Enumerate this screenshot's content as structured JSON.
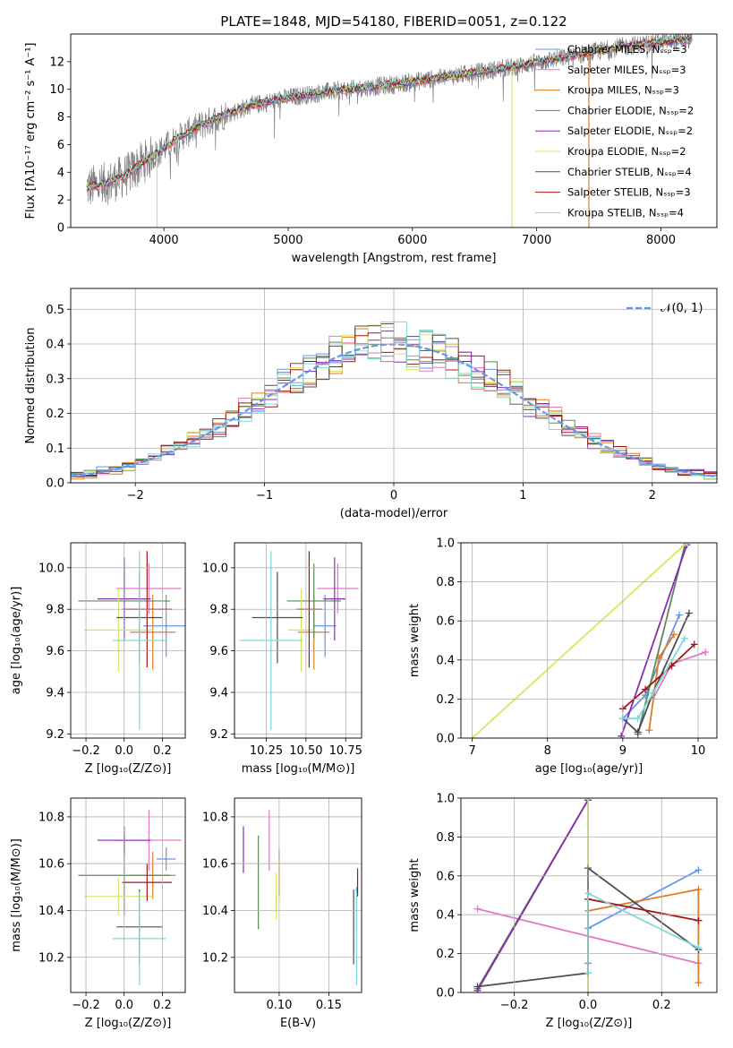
{
  "figure_title": "PLATE=1848, MJD=54180, FIBERID=0051, z=0.122",
  "model_colors": {
    "Chabrier MILES": "#6495ed",
    "Salpeter MILES": "#e377c2",
    "Kroupa MILES": "#e07b22",
    "Chabrier ELODIE": "#5a8a5a",
    "Salpeter ELODIE": "#8a2ab0",
    "Kroupa ELODIE": "#d4e95a",
    "Chabrier STELIB": "#4d4d4d",
    "Salpeter STELIB": "#a51414",
    "Kroupa STELIB": "#7ddada"
  },
  "chart_data": [
    {
      "id": "spectrum",
      "type": "line",
      "title": "PLATE=1848, MJD=54180, FIBERID=0051, z=0.122",
      "xlabel": "wavelength [Angstrom, rest frame]",
      "ylabel": "Flux [fλ10⁻¹⁷ erg cm⁻² s⁻¹ A⁻¹]",
      "xlim": [
        3250,
        8450
      ],
      "ylim": [
        0,
        14
      ],
      "xticks": [
        "4000",
        "5000",
        "6000",
        "7000",
        "8000"
      ],
      "yticks": [
        "0",
        "2",
        "4",
        "6",
        "8",
        "10",
        "12"
      ],
      "legend_position": "top-right",
      "data_color": "#808080",
      "continuum": [
        [
          3380,
          2.9
        ],
        [
          3550,
          3.2
        ],
        [
          3700,
          3.8
        ],
        [
          3800,
          4.5
        ],
        [
          3950,
          5.4
        ],
        [
          4100,
          6.4
        ],
        [
          4300,
          7.4
        ],
        [
          4500,
          8.2
        ],
        [
          4700,
          8.8
        ],
        [
          5000,
          9.4
        ],
        [
          5300,
          9.8
        ],
        [
          5600,
          10.1
        ],
        [
          5900,
          10.4
        ],
        [
          6200,
          10.8
        ],
        [
          6500,
          11.2
        ],
        [
          6800,
          11.6
        ],
        [
          7100,
          12.1
        ],
        [
          7400,
          12.6
        ],
        [
          7700,
          13.1
        ],
        [
          8000,
          13.4
        ],
        [
          8200,
          13.6
        ]
      ],
      "series": [
        {
          "name": "Chabrier MILES, Nₛₛₚ=3",
          "color": "#6495ed"
        },
        {
          "name": "Salpeter MILES, Nₛₛₚ=3",
          "color": "#e377c2"
        },
        {
          "name": "Kroupa MILES, Nₛₛₚ=3",
          "color": "#e07b22"
        },
        {
          "name": "Chabrier ELODIE, Nₛₛₚ=2",
          "color": "#5a8a5a"
        },
        {
          "name": "Salpeter ELODIE, Nₛₛₚ=2",
          "color": "#8a2ab0"
        },
        {
          "name": "Kroupa ELODIE, Nₛₛₚ=2",
          "color": "#d4e95a"
        },
        {
          "name": "Chabrier STELIB, Nₛₛₚ=4",
          "color": "#4d4d4d"
        },
        {
          "name": "Salpeter STELIB, Nₛₛₚ=3",
          "color": "#a51414"
        },
        {
          "name": "Kroupa STELIB, Nₛₛₚ=4",
          "color": "#7ddada"
        }
      ],
      "spikes": [
        {
          "x": 3945,
          "y": 0,
          "color": "#d4e95a"
        },
        {
          "x": 6800,
          "y": 0,
          "color": "#d4e95a"
        },
        {
          "x": 7420,
          "y": 0,
          "color": "#e07b22"
        }
      ]
    },
    {
      "id": "residuals",
      "type": "histogram",
      "xlabel": "(data-model)/error",
      "ylabel": "Normed distribution",
      "xlim": [
        -2.5,
        2.5
      ],
      "ylim": [
        0,
        0.56
      ],
      "xticks": [
        "−2",
        "−1",
        "0",
        "1",
        "2"
      ],
      "yticks": [
        "0.0",
        "0.1",
        "0.2",
        "0.3",
        "0.4",
        "0.5"
      ],
      "legend": "𝒩(0, 1)",
      "legend_position": "top-right",
      "gaussian_color": "#6495ed",
      "bin_width": 0.1
    },
    {
      "id": "age-vs-Z",
      "type": "errorbar",
      "xlabel": "Z [log₁₀(Z/Z⊙)]",
      "ylabel": "age  [log₁₀(age/yr)]",
      "xlim": [
        -0.28,
        0.32
      ],
      "ylim": [
        9.18,
        10.12
      ],
      "xticks": [
        "−0.2",
        "0.0",
        "0.2"
      ],
      "yticks": [
        "9.2",
        "9.4",
        "9.6",
        "9.8",
        "10.0"
      ],
      "points": [
        {
          "model": "Chabrier MILES",
          "x": 0.22,
          "xerr": 0.12,
          "y": 9.72,
          "yerr": 0.15
        },
        {
          "model": "Salpeter MILES",
          "x": 0.13,
          "xerr": 0.17,
          "y": 9.9,
          "yerr": 0.12
        },
        {
          "model": "Kroupa MILES",
          "x": 0.15,
          "xerr": 0.12,
          "y": 9.69,
          "yerr": 0.18
        },
        {
          "model": "Chabrier ELODIE",
          "x": 0.0,
          "xerr": 0.24,
          "y": 9.84,
          "yerr": 0.18
        },
        {
          "model": "Salpeter ELODIE",
          "x": 0.0,
          "xerr": 0.14,
          "y": 9.85,
          "yerr": 0.2
        },
        {
          "model": "Kroupa ELODIE",
          "x": -0.03,
          "xerr": 0.18,
          "y": 9.7,
          "yerr": 0.2
        },
        {
          "model": "Chabrier STELIB",
          "x": 0.08,
          "xerr": 0.12,
          "y": 9.76,
          "yerr": 0.22
        },
        {
          "model": "Salpeter STELIB",
          "x": 0.12,
          "xerr": 0.13,
          "y": 9.8,
          "yerr": 0.28
        },
        {
          "model": "Kroupa STELIB",
          "x": 0.08,
          "xerr": 0.14,
          "y": 9.65,
          "yerr": 0.43
        }
      ]
    },
    {
      "id": "age-vs-mass",
      "type": "errorbar",
      "xlabel": "mass [log₁₀(M/M⊙)]",
      "xlim": [
        10.05,
        10.85
      ],
      "ylim": [
        9.18,
        10.12
      ],
      "xticks": [
        "10.25",
        "10.50",
        "10.75"
      ],
      "yticks": [
        "9.2",
        "9.4",
        "9.6",
        "9.8",
        "10.0"
      ],
      "points": [
        {
          "model": "Chabrier MILES",
          "x": 10.62,
          "xerr": 0.07,
          "y": 9.72,
          "yerr": 0.15
        },
        {
          "model": "Salpeter MILES",
          "x": 10.7,
          "xerr": 0.13,
          "y": 9.9,
          "yerr": 0.12
        },
        {
          "model": "Kroupa MILES",
          "x": 10.55,
          "xerr": 0.1,
          "y": 9.69,
          "yerr": 0.18
        },
        {
          "model": "Chabrier ELODIE",
          "x": 10.55,
          "xerr": 0.17,
          "y": 9.84,
          "yerr": 0.18
        },
        {
          "model": "Salpeter ELODIE",
          "x": 10.68,
          "xerr": 0.07,
          "y": 9.85,
          "yerr": 0.2
        },
        {
          "model": "Kroupa ELODIE",
          "x": 10.47,
          "xerr": 0.08,
          "y": 9.7,
          "yerr": 0.2
        },
        {
          "model": "Chabrier STELIB",
          "x": 10.32,
          "xerr": 0.16,
          "y": 9.76,
          "yerr": 0.22
        },
        {
          "model": "Salpeter STELIB",
          "x": 10.52,
          "xerr": 0.08,
          "y": 9.8,
          "yerr": 0.28
        },
        {
          "model": "Kroupa STELIB",
          "x": 10.28,
          "xerr": 0.2,
          "y": 9.65,
          "yerr": 0.43
        }
      ]
    },
    {
      "id": "massweight-vs-age",
      "type": "line",
      "xlabel": "age  [log₁₀(age/yr)]",
      "ylabel": "mass weight",
      "xlim": [
        6.85,
        10.25
      ],
      "ylim": [
        0,
        1
      ],
      "xticks": [
        "7",
        "8",
        "9",
        "10"
      ],
      "yticks": [
        "0.0",
        "0.2",
        "0.4",
        "0.6",
        "0.8",
        "1.0"
      ],
      "series": [
        {
          "model": "Chabrier MILES",
          "points": [
            [
              9.0,
              0.1
            ],
            [
              9.3,
              0.22
            ],
            [
              9.75,
              0.63
            ]
          ]
        },
        {
          "model": "Salpeter MILES",
          "points": [
            [
              9.4,
              0.2
            ],
            [
              9.65,
              0.38
            ],
            [
              10.1,
              0.44
            ]
          ]
        },
        {
          "model": "Kroupa MILES",
          "points": [
            [
              9.35,
              0.04
            ],
            [
              9.48,
              0.41
            ],
            [
              9.68,
              0.53
            ]
          ]
        },
        {
          "model": "Chabrier ELODIE",
          "points": [
            [
              9.2,
              0.02
            ],
            [
              9.82,
              0.98
            ]
          ]
        },
        {
          "model": "Salpeter ELODIE",
          "points": [
            [
              8.98,
              0.01
            ],
            [
              9.85,
              0.99
            ]
          ]
        },
        {
          "model": "Kroupa ELODIE",
          "points": [
            [
              7.0,
              0.0
            ],
            [
              9.85,
              1.0
            ]
          ]
        },
        {
          "model": "Chabrier STELIB",
          "points": [
            [
              9.0,
              0.1
            ],
            [
              9.2,
              0.03
            ],
            [
              9.4,
              0.23
            ],
            [
              9.88,
              0.64
            ]
          ]
        },
        {
          "model": "Salpeter STELIB",
          "points": [
            [
              9.0,
              0.15
            ],
            [
              9.3,
              0.25
            ],
            [
              9.65,
              0.37
            ],
            [
              9.95,
              0.48
            ]
          ]
        },
        {
          "model": "Kroupa STELIB",
          "points": [
            [
              9.0,
              0.1
            ],
            [
              9.2,
              0.1
            ],
            [
              9.4,
              0.23
            ],
            [
              9.82,
              0.51
            ]
          ]
        }
      ]
    },
    {
      "id": "mass-vs-Z",
      "type": "errorbar",
      "xlabel": "Z [log₁₀(Z/Z⊙)]",
      "ylabel": "mass [log₁₀(M/M⊙)]",
      "xlim": [
        -0.28,
        0.32
      ],
      "ylim": [
        10.05,
        10.88
      ],
      "xticks": [
        "−0.2",
        "0.0",
        "0.2"
      ],
      "yticks": [
        "10.2",
        "10.4",
        "10.6",
        "10.8"
      ],
      "points": [
        {
          "model": "Chabrier MILES",
          "x": 0.22,
          "xerr": 0.05,
          "y": 10.62,
          "yerr": 0.05
        },
        {
          "model": "Salpeter MILES",
          "x": 0.13,
          "xerr": 0.17,
          "y": 10.7,
          "yerr": 0.13
        },
        {
          "model": "Kroupa MILES",
          "x": 0.15,
          "xerr": 0.12,
          "y": 10.55,
          "yerr": 0.1
        },
        {
          "model": "Chabrier ELODIE",
          "x": 0.0,
          "xerr": 0.24,
          "y": 10.55,
          "yerr": 0.17
        },
        {
          "model": "Salpeter ELODIE",
          "x": 0.0,
          "xerr": 0.14,
          "y": 10.7,
          "yerr": 0.06
        },
        {
          "model": "Kroupa ELODIE",
          "x": -0.03,
          "xerr": 0.18,
          "y": 10.46,
          "yerr": 0.08
        },
        {
          "model": "Chabrier STELIB",
          "x": 0.08,
          "xerr": 0.12,
          "y": 10.33,
          "yerr": 0.16
        },
        {
          "model": "Salpeter STELIB",
          "x": 0.12,
          "xerr": 0.13,
          "y": 10.52,
          "yerr": 0.08
        },
        {
          "model": "Kroupa STELIB",
          "x": 0.08,
          "xerr": 0.14,
          "y": 10.28,
          "yerr": 0.2
        }
      ]
    },
    {
      "id": "mass-vs-ebv",
      "type": "errorbar",
      "xlabel": "E(B-V)",
      "xlim": [
        0.055,
        0.183
      ],
      "ylim": [
        10.05,
        10.88
      ],
      "xticks": [
        "0.10",
        "0.15"
      ],
      "yticks": [
        "10.2",
        "10.4",
        "10.6",
        "10.8"
      ],
      "points": [
        {
          "model": "Chabrier MILES",
          "x": 0.178,
          "xerr": 0,
          "y": 10.4,
          "yerr": 0.1
        },
        {
          "model": "Salpeter MILES",
          "x": 0.09,
          "xerr": 0,
          "y": 10.7,
          "yerr": 0.13
        },
        {
          "model": "Kroupa MILES",
          "x": 0.1,
          "xerr": 0,
          "y": 10.56,
          "yerr": 0.1
        },
        {
          "model": "Chabrier ELODIE",
          "x": 0.079,
          "xerr": 0,
          "y": 10.52,
          "yerr": 0.2
        },
        {
          "model": "Salpeter ELODIE",
          "x": 0.064,
          "xerr": 0,
          "y": 10.66,
          "yerr": 0.1
        },
        {
          "model": "Kroupa ELODIE",
          "x": 0.097,
          "xerr": 0,
          "y": 10.46,
          "yerr": 0.1
        },
        {
          "model": "Chabrier STELIB",
          "x": 0.175,
          "xerr": 0,
          "y": 10.33,
          "yerr": 0.16
        },
        {
          "model": "Salpeter STELIB",
          "x": 0.179,
          "xerr": 0,
          "y": 10.52,
          "yerr": 0.06
        },
        {
          "model": "Kroupa STELIB",
          "x": 0.178,
          "xerr": 0,
          "y": 10.28,
          "yerr": 0.2
        }
      ]
    },
    {
      "id": "massweight-vs-Z",
      "type": "line",
      "xlabel": "Z [log₁₀(Z/Z⊙)]",
      "ylabel": "mass weight",
      "xlim": [
        -0.345,
        0.35
      ],
      "ylim": [
        0,
        1
      ],
      "xticks": [
        "−0.2",
        "0.0",
        "0.2"
      ],
      "yticks": [
        "0.0",
        "0.2",
        "0.4",
        "0.6",
        "0.8",
        "1.0"
      ],
      "series": [
        {
          "model": "Chabrier MILES",
          "points": [
            [
              0.0,
              0.15
            ],
            [
              0.0,
              0.33
            ],
            [
              0.3,
              0.63
            ]
          ]
        },
        {
          "model": "Salpeter MILES",
          "points": [
            [
              -0.3,
              0.43
            ],
            [
              0.3,
              0.15
            ]
          ]
        },
        {
          "model": "Kroupa MILES",
          "points": [
            [
              0.0,
              0.42
            ],
            [
              0.3,
              0.53
            ],
            [
              0.3,
              0.05
            ]
          ]
        },
        {
          "model": "Chabrier ELODIE",
          "points": [
            [
              -0.3,
              0.02
            ],
            [
              0.0,
              0.99
            ]
          ]
        },
        {
          "model": "Salpeter ELODIE",
          "points": [
            [
              -0.3,
              0.01
            ],
            [
              0.0,
              0.99
            ]
          ]
        },
        {
          "model": "Kroupa ELODIE",
          "points": [
            [
              0.0,
              0.0
            ],
            [
              0.0,
              1.0
            ]
          ]
        },
        {
          "model": "Chabrier STELIB",
          "points": [
            [
              -0.3,
              0.03
            ],
            [
              0.0,
              0.1
            ],
            [
              0.0,
              0.64
            ],
            [
              0.3,
              0.22
            ]
          ]
        },
        {
          "model": "Salpeter STELIB",
          "points": [
            [
              0.0,
              0.48
            ],
            [
              0.3,
              0.37
            ]
          ]
        },
        {
          "model": "Kroupa STELIB",
          "points": [
            [
              0.0,
              0.1
            ],
            [
              0.0,
              0.51
            ],
            [
              0.3,
              0.23
            ]
          ]
        }
      ]
    }
  ]
}
